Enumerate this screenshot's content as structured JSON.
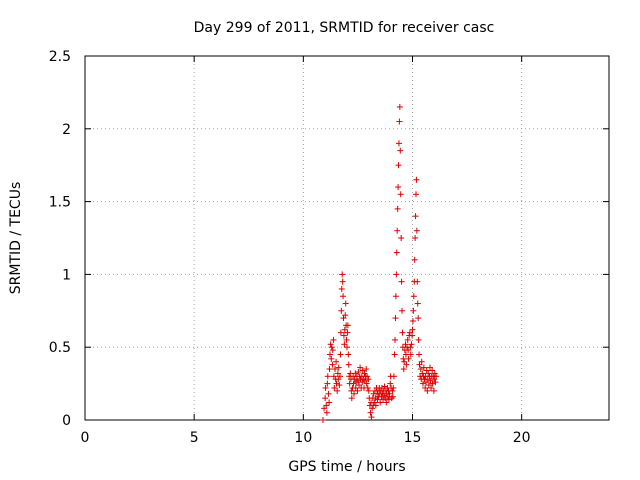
{
  "chart_data": {
    "type": "scatter",
    "title": "Day 299 of 2011, SRMTID for receiver casc",
    "xlabel": "GPS time / hours",
    "ylabel": "SRMTID / TECUs",
    "xlim": [
      0,
      24
    ],
    "ylim": [
      0,
      2.5
    ],
    "xticks": [
      0,
      5,
      10,
      15,
      20
    ],
    "yticks": [
      0,
      0.5,
      1,
      1.5,
      2,
      2.5
    ],
    "xtick_labels": [
      "0",
      "5",
      "10",
      "15",
      "20"
    ],
    "ytick_labels": [
      "0",
      "0.5",
      "1",
      "1.5",
      "2",
      "2.5"
    ],
    "grid": true,
    "marker": "+",
    "point_color": "#dd0000",
    "series": [
      {
        "points": [
          [
            10.9,
            0.0
          ],
          [
            10.95,
            0.08
          ],
          [
            11.0,
            0.15
          ],
          [
            11.02,
            0.22
          ],
          [
            11.05,
            0.1
          ],
          [
            11.08,
            0.05
          ],
          [
            11.1,
            0.25
          ],
          [
            11.12,
            0.3
          ],
          [
            11.15,
            0.18
          ],
          [
            11.18,
            0.12
          ],
          [
            11.2,
            0.35
          ],
          [
            11.22,
            0.45
          ],
          [
            11.25,
            0.52
          ],
          [
            11.28,
            0.42
          ],
          [
            11.3,
            0.5
          ],
          [
            11.33,
            0.38
          ],
          [
            11.35,
            0.48
          ],
          [
            11.38,
            0.55
          ],
          [
            11.4,
            0.3
          ],
          [
            11.42,
            0.22
          ],
          [
            11.45,
            0.35
          ],
          [
            11.48,
            0.28
          ],
          [
            11.5,
            0.4
          ],
          [
            11.52,
            0.25
          ],
          [
            11.55,
            0.2
          ],
          [
            11.58,
            0.32
          ],
          [
            11.6,
            0.28
          ],
          [
            11.62,
            0.36
          ],
          [
            11.65,
            0.24
          ],
          [
            11.68,
            0.3
          ],
          [
            11.7,
            0.45
          ],
          [
            11.72,
            0.6
          ],
          [
            11.74,
            0.75
          ],
          [
            11.76,
            0.9
          ],
          [
            11.78,
            1.0
          ],
          [
            11.8,
            0.95
          ],
          [
            11.82,
            0.85
          ],
          [
            11.84,
            0.7
          ],
          [
            11.86,
            0.58
          ],
          [
            11.88,
            0.52
          ],
          [
            11.9,
            0.62
          ],
          [
            11.92,
            0.72
          ],
          [
            11.94,
            0.8
          ],
          [
            11.96,
            0.65
          ],
          [
            11.98,
            0.55
          ],
          [
            12.0,
            0.5
          ],
          [
            12.02,
            0.6
          ],
          [
            12.04,
            0.65
          ],
          [
            12.06,
            0.45
          ],
          [
            12.08,
            0.38
          ],
          [
            12.1,
            0.3
          ],
          [
            12.12,
            0.25
          ],
          [
            12.15,
            0.32
          ],
          [
            12.18,
            0.28
          ],
          [
            12.2,
            0.2
          ],
          [
            12.22,
            0.15
          ],
          [
            12.25,
            0.22
          ],
          [
            12.28,
            0.3
          ],
          [
            12.3,
            0.25
          ],
          [
            12.32,
            0.18
          ],
          [
            12.35,
            0.28
          ],
          [
            12.38,
            0.32
          ],
          [
            12.4,
            0.22
          ],
          [
            12.42,
            0.26
          ],
          [
            12.45,
            0.3
          ],
          [
            12.48,
            0.2
          ],
          [
            12.5,
            0.27
          ],
          [
            12.52,
            0.33
          ],
          [
            12.55,
            0.24
          ],
          [
            12.58,
            0.3
          ],
          [
            12.6,
            0.36
          ],
          [
            12.62,
            0.28
          ],
          [
            12.65,
            0.22
          ],
          [
            12.68,
            0.3
          ],
          [
            12.7,
            0.26
          ],
          [
            12.72,
            0.34
          ],
          [
            12.75,
            0.28
          ],
          [
            12.78,
            0.22
          ],
          [
            12.8,
            0.32
          ],
          [
            12.82,
            0.27
          ],
          [
            12.85,
            0.3
          ],
          [
            12.88,
            0.35
          ],
          [
            12.9,
            0.25
          ],
          [
            12.92,
            0.3
          ],
          [
            12.95,
            0.22
          ],
          [
            12.98,
            0.28
          ],
          [
            13.0,
            0.2
          ],
          [
            13.02,
            0.15
          ],
          [
            13.05,
            0.1
          ],
          [
            13.08,
            0.05
          ],
          [
            13.1,
            0.12
          ],
          [
            13.12,
            0.02
          ],
          [
            13.15,
            0.08
          ],
          [
            13.18,
            0.15
          ],
          [
            13.2,
            0.1
          ],
          [
            13.22,
            0.18
          ],
          [
            13.25,
            0.12
          ],
          [
            13.28,
            0.2
          ],
          [
            13.3,
            0.15
          ],
          [
            13.32,
            0.1
          ],
          [
            13.35,
            0.22
          ],
          [
            13.38,
            0.18
          ],
          [
            13.4,
            0.14
          ],
          [
            13.42,
            0.2
          ],
          [
            13.45,
            0.16
          ],
          [
            13.48,
            0.22
          ],
          [
            13.5,
            0.18
          ],
          [
            13.52,
            0.12
          ],
          [
            13.55,
            0.2
          ],
          [
            13.58,
            0.16
          ],
          [
            13.6,
            0.22
          ],
          [
            13.62,
            0.18
          ],
          [
            13.65,
            0.14
          ],
          [
            13.68,
            0.2
          ],
          [
            13.7,
            0.17
          ],
          [
            13.72,
            0.23
          ],
          [
            13.75,
            0.15
          ],
          [
            13.78,
            0.2
          ],
          [
            13.8,
            0.12
          ],
          [
            13.82,
            0.18
          ],
          [
            13.85,
            0.22
          ],
          [
            13.88,
            0.16
          ],
          [
            13.9,
            0.2
          ],
          [
            13.92,
            0.14
          ],
          [
            13.95,
            0.18
          ],
          [
            13.98,
            0.25
          ],
          [
            14.0,
            0.3
          ],
          [
            14.02,
            0.22
          ],
          [
            14.05,
            0.15
          ],
          [
            14.08,
            0.2
          ],
          [
            14.1,
            0.16
          ],
          [
            14.12,
            0.22
          ],
          [
            14.15,
            0.3
          ],
          [
            14.18,
            0.45
          ],
          [
            14.2,
            0.55
          ],
          [
            14.22,
            0.7
          ],
          [
            14.24,
            0.85
          ],
          [
            14.26,
            1.0
          ],
          [
            14.28,
            1.15
          ],
          [
            14.3,
            1.3
          ],
          [
            14.32,
            1.45
          ],
          [
            14.34,
            1.6
          ],
          [
            14.36,
            1.75
          ],
          [
            14.38,
            1.9
          ],
          [
            14.4,
            2.05
          ],
          [
            14.42,
            2.15
          ],
          [
            14.44,
            1.85
          ],
          [
            14.46,
            1.55
          ],
          [
            14.48,
            1.25
          ],
          [
            14.5,
            0.95
          ],
          [
            14.52,
            0.75
          ],
          [
            14.54,
            0.6
          ],
          [
            14.56,
            0.5
          ],
          [
            14.58,
            0.42
          ],
          [
            14.6,
            0.35
          ],
          [
            14.62,
            0.4
          ],
          [
            14.65,
            0.48
          ],
          [
            14.68,
            0.52
          ],
          [
            14.7,
            0.45
          ],
          [
            14.72,
            0.38
          ],
          [
            14.75,
            0.5
          ],
          [
            14.78,
            0.55
          ],
          [
            14.8,
            0.48
          ],
          [
            14.82,
            0.42
          ],
          [
            14.85,
            0.58
          ],
          [
            14.88,
            0.6
          ],
          [
            14.9,
            0.5
          ],
          [
            14.92,
            0.45
          ],
          [
            14.95,
            0.52
          ],
          [
            14.98,
            0.58
          ],
          [
            15.0,
            0.62
          ],
          [
            15.02,
            0.68
          ],
          [
            15.04,
            0.75
          ],
          [
            15.06,
            0.85
          ],
          [
            15.08,
            0.95
          ],
          [
            15.1,
            1.1
          ],
          [
            15.12,
            1.25
          ],
          [
            15.14,
            1.4
          ],
          [
            15.16,
            1.55
          ],
          [
            15.18,
            1.65
          ],
          [
            15.2,
            1.3
          ],
          [
            15.22,
            0.95
          ],
          [
            15.24,
            0.8
          ],
          [
            15.26,
            0.7
          ],
          [
            15.28,
            0.55
          ],
          [
            15.3,
            0.45
          ],
          [
            15.32,
            0.38
          ],
          [
            15.35,
            0.3
          ],
          [
            15.38,
            0.35
          ],
          [
            15.4,
            0.28
          ],
          [
            15.42,
            0.4
          ],
          [
            15.45,
            0.32
          ],
          [
            15.48,
            0.25
          ],
          [
            15.5,
            0.3
          ],
          [
            15.52,
            0.36
          ],
          [
            15.55,
            0.28
          ],
          [
            15.58,
            0.22
          ],
          [
            15.6,
            0.3
          ],
          [
            15.62,
            0.26
          ],
          [
            15.65,
            0.34
          ],
          [
            15.68,
            0.2
          ],
          [
            15.7,
            0.28
          ],
          [
            15.72,
            0.32
          ],
          [
            15.75,
            0.24
          ],
          [
            15.78,
            0.3
          ],
          [
            15.8,
            0.36
          ],
          [
            15.82,
            0.27
          ],
          [
            15.85,
            0.22
          ],
          [
            15.88,
            0.3
          ],
          [
            15.9,
            0.34
          ],
          [
            15.92,
            0.25
          ],
          [
            15.95,
            0.3
          ],
          [
            15.98,
            0.2
          ],
          [
            16.0,
            0.28
          ],
          [
            16.02,
            0.32
          ],
          [
            16.05,
            0.26
          ],
          [
            16.08,
            0.3
          ]
        ]
      }
    ]
  }
}
